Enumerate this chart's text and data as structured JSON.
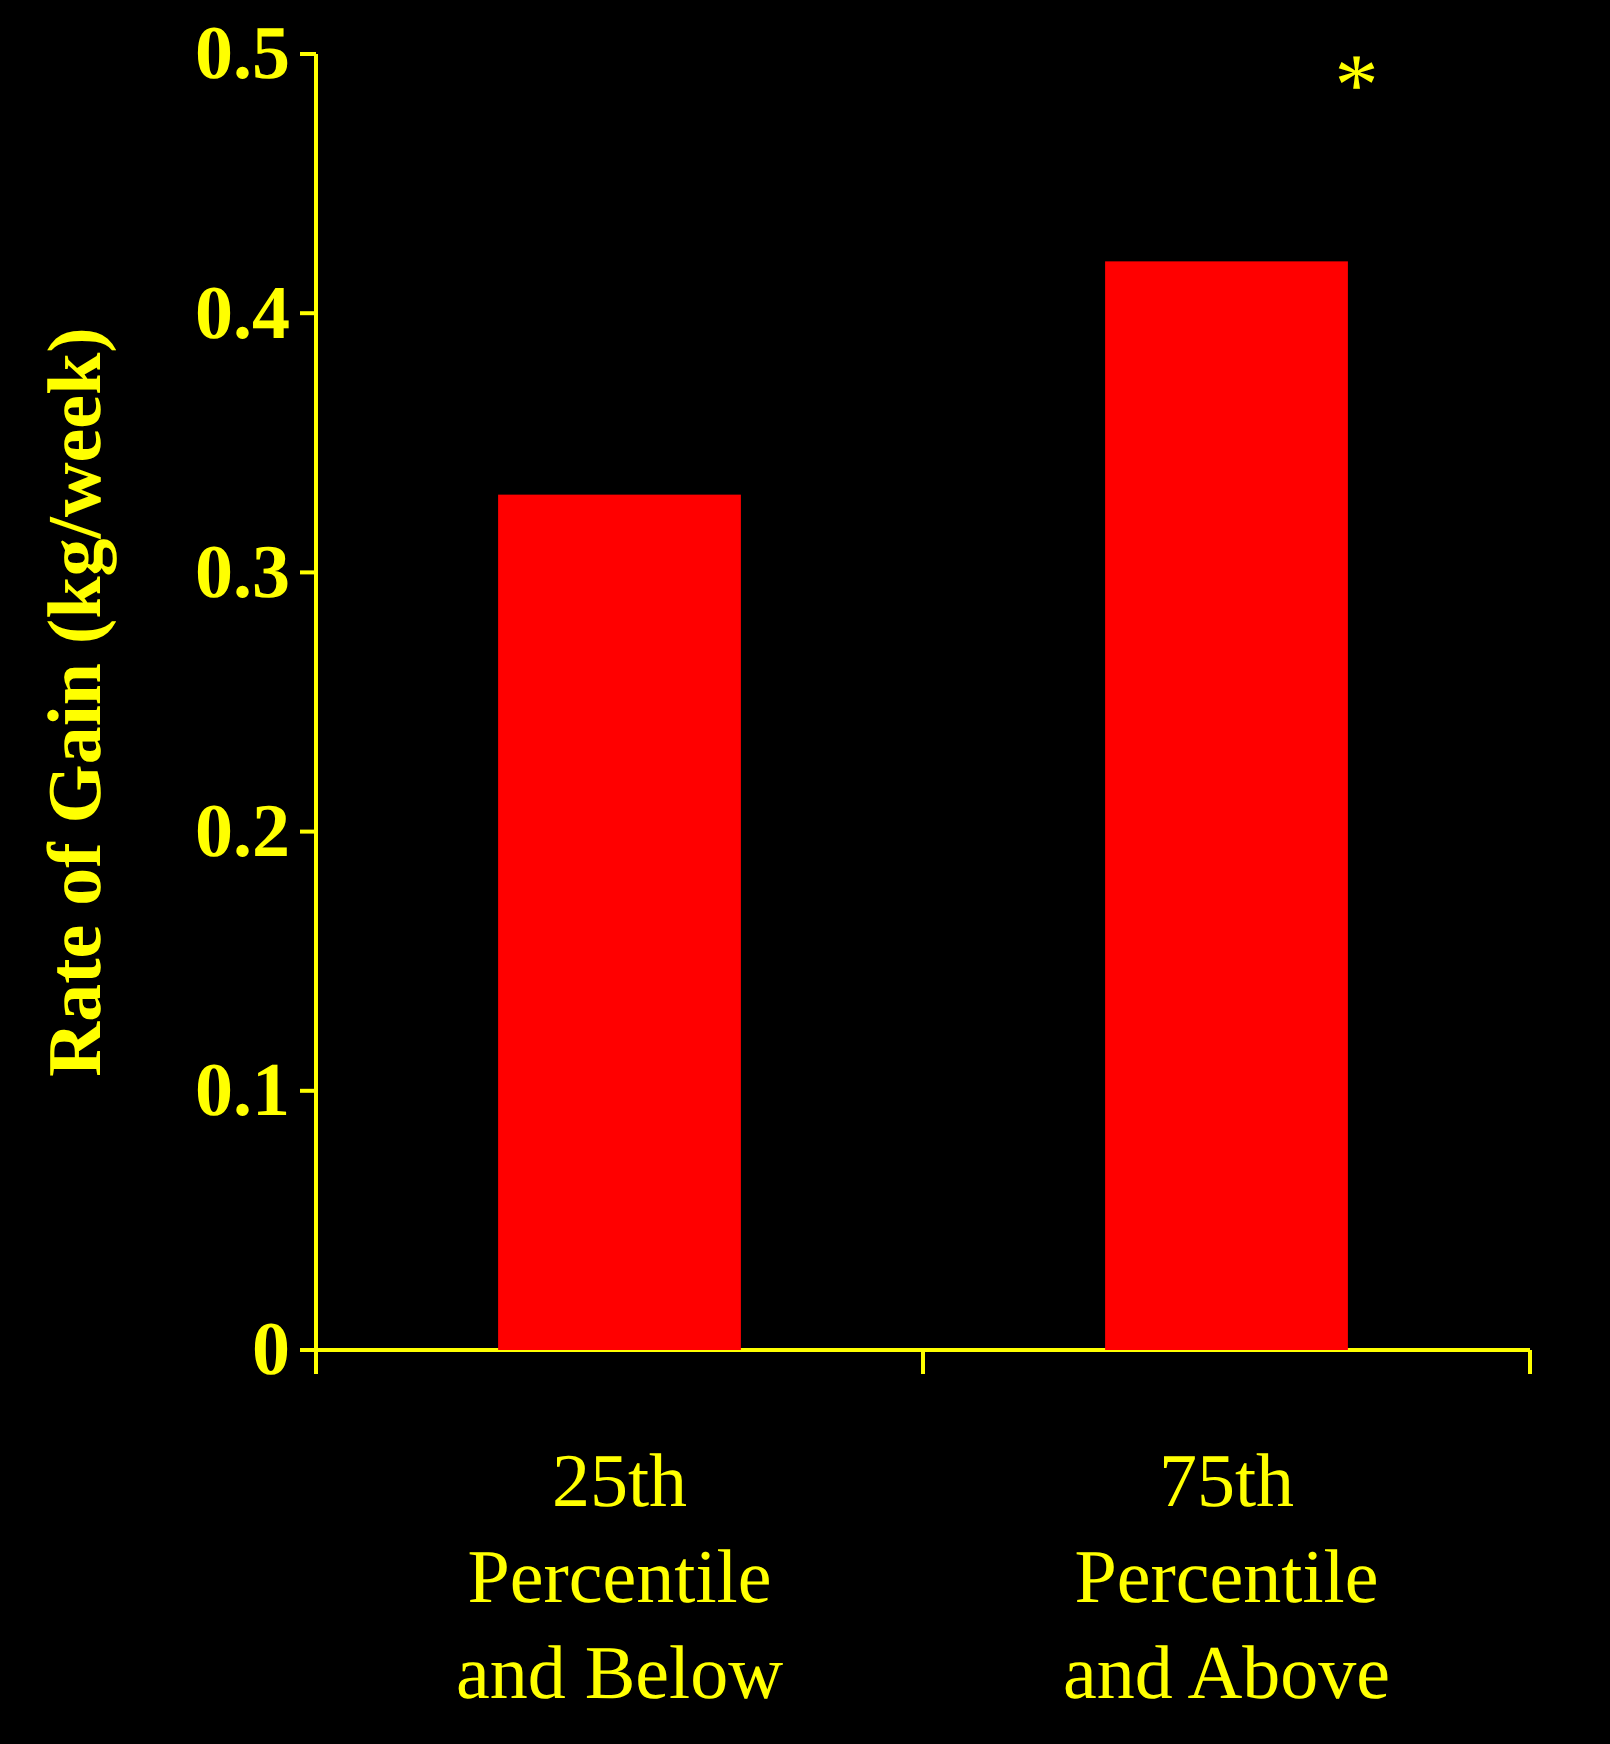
{
  "chart_data": {
    "type": "bar",
    "ylabel": "Rate of Gain (kg/week)",
    "categories": [
      "25th\nPercentile\nand Below",
      "75th\nPercentile\nand Above"
    ],
    "values": [
      0.33,
      0.42
    ],
    "color": "#ff0000",
    "ylim": [
      0,
      0.5
    ],
    "yticks": [
      0,
      0.1,
      0.2,
      0.3,
      0.4,
      0.5
    ],
    "grid": false,
    "annotations": [
      "*"
    ]
  }
}
